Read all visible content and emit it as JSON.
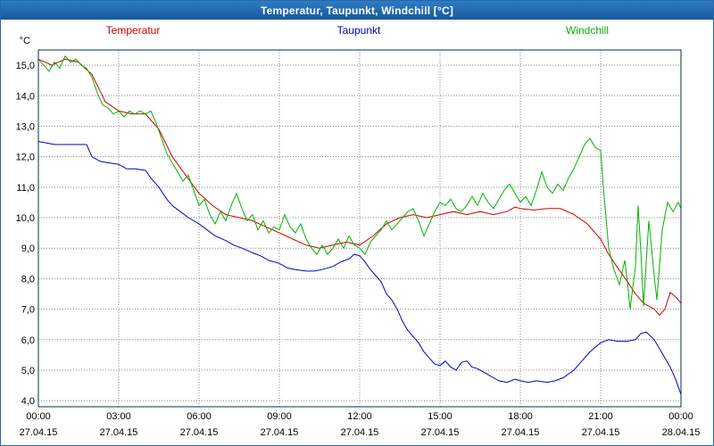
{
  "window": {
    "title": "Temperatur, Taupunkt, Windchill [°C]"
  },
  "colors": {
    "titlebar_top": "#2e7cc3",
    "titlebar_bottom": "#17589d",
    "grid": "#8a8a8a",
    "plot_border": "#062c56"
  },
  "chart_data": {
    "type": "line",
    "title": "Temperatur, Taupunkt, Windchill [°C]",
    "y_unit_label": "°C",
    "grid": true,
    "x_hours_range": [
      0,
      24
    ],
    "y_range_plot": [
      3.8,
      15.5
    ],
    "y_tick_values": [
      15,
      14,
      13,
      12,
      11,
      10,
      9,
      8,
      7,
      6,
      5,
      4
    ],
    "y_tick_labels": [
      "15,0",
      "14,0",
      "13,0",
      "12,0",
      "11,0",
      "10,0",
      "9,0",
      "8,0",
      "7,0",
      "6,0",
      "5,0",
      "4,0"
    ],
    "x_tick_hours": [
      0,
      3,
      6,
      9,
      12,
      15,
      18,
      21,
      24
    ],
    "x_tick_times": [
      "00:00",
      "03:00",
      "06:00",
      "09:00",
      "12:00",
      "15:00",
      "18:00",
      "21:00",
      "00:00"
    ],
    "x_tick_dates": [
      "27.04.15",
      "27.04.15",
      "27.04.15",
      "27.04.15",
      "27.04.15",
      "27.04.15",
      "27.04.15",
      "27.04.15",
      "28.04.15"
    ],
    "legend": [
      {
        "label": "Temperatur",
        "color": "#d00000"
      },
      {
        "label": "Taupunkt",
        "color": "#0000c0"
      },
      {
        "label": "Windchill",
        "color": "#00b400"
      }
    ],
    "series": [
      {
        "name": "Temperatur",
        "color": "#d00000",
        "x": [
          0,
          0.5,
          1.0,
          1.5,
          2.0,
          2.5,
          3.0,
          3.5,
          4.0,
          4.5,
          5.0,
          5.5,
          6.0,
          6.5,
          7.0,
          7.5,
          8.0,
          8.5,
          9.0,
          9.5,
          10.0,
          10.5,
          11.0,
          11.5,
          12.0,
          12.5,
          13.0,
          13.5,
          14.0,
          14.5,
          15.0,
          15.5,
          16.0,
          16.5,
          17.0,
          17.5,
          17.8,
          18.0,
          18.5,
          19.0,
          19.5,
          20.0,
          20.5,
          21.0,
          21.3,
          21.6,
          22.0,
          22.3,
          22.6,
          23.0,
          23.2,
          23.4,
          23.6,
          23.8,
          24.0
        ],
        "y": [
          15.2,
          15.0,
          15.2,
          15.1,
          14.7,
          13.8,
          13.5,
          13.4,
          13.4,
          12.9,
          12.0,
          11.4,
          10.8,
          10.4,
          10.1,
          10.0,
          9.9,
          9.7,
          9.5,
          9.3,
          9.1,
          9.0,
          9.1,
          9.2,
          9.1,
          9.4,
          9.8,
          10.0,
          10.1,
          10.0,
          10.1,
          10.2,
          10.1,
          10.2,
          10.1,
          10.2,
          10.35,
          10.3,
          10.25,
          10.3,
          10.3,
          10.1,
          9.8,
          9.3,
          8.8,
          8.4,
          7.9,
          7.5,
          7.2,
          7.0,
          6.8,
          7.0,
          7.55,
          7.4,
          7.2
        ]
      },
      {
        "name": "Taupunkt",
        "color": "#0000c0",
        "x": [
          0,
          0.3,
          0.6,
          1.0,
          1.5,
          1.8,
          2.0,
          2.3,
          2.6,
          3.0,
          3.3,
          3.6,
          4.0,
          4.2,
          4.5,
          4.8,
          5.0,
          5.3,
          5.6,
          6.0,
          6.3,
          6.6,
          7.0,
          7.3,
          7.6,
          8.0,
          8.3,
          8.6,
          9.0,
          9.3,
          9.6,
          10.0,
          10.3,
          10.6,
          11.0,
          11.3,
          11.6,
          11.8,
          12.0,
          12.2,
          12.4,
          12.6,
          12.8,
          13.0,
          13.2,
          13.4,
          13.6,
          13.8,
          14.0,
          14.2,
          14.4,
          14.6,
          14.8,
          15.0,
          15.2,
          15.4,
          15.6,
          15.8,
          16.0,
          16.2,
          16.4,
          16.6,
          16.8,
          17.0,
          17.2,
          17.5,
          17.8,
          18.0,
          18.3,
          18.6,
          19.0,
          19.3,
          19.6,
          20.0,
          20.3,
          20.6,
          21.0,
          21.3,
          21.6,
          22.0,
          22.3,
          22.5,
          22.7,
          23.0,
          23.2,
          23.4,
          23.6,
          23.8,
          24.0
        ],
        "y": [
          12.5,
          12.45,
          12.4,
          12.4,
          12.4,
          12.4,
          12.0,
          11.85,
          11.8,
          11.75,
          11.6,
          11.6,
          11.55,
          11.3,
          11.0,
          10.6,
          10.4,
          10.2,
          10.0,
          9.8,
          9.6,
          9.4,
          9.25,
          9.1,
          9.0,
          8.85,
          8.75,
          8.6,
          8.5,
          8.35,
          8.3,
          8.25,
          8.25,
          8.3,
          8.4,
          8.55,
          8.65,
          8.8,
          8.75,
          8.55,
          8.3,
          8.1,
          7.9,
          7.5,
          7.3,
          7.0,
          6.6,
          6.3,
          6.1,
          5.9,
          5.6,
          5.4,
          5.2,
          5.15,
          5.3,
          5.1,
          5.0,
          5.25,
          5.3,
          5.1,
          5.05,
          4.95,
          4.85,
          4.75,
          4.65,
          4.6,
          4.7,
          4.65,
          4.6,
          4.65,
          4.6,
          4.65,
          4.75,
          5.0,
          5.3,
          5.6,
          5.9,
          6.0,
          5.95,
          5.95,
          6.0,
          6.2,
          6.25,
          6.0,
          5.7,
          5.4,
          5.1,
          4.7,
          4.2
        ]
      },
      {
        "name": "Windchill",
        "color": "#00b400",
        "x": [
          0,
          0.2,
          0.4,
          0.6,
          0.8,
          1.0,
          1.2,
          1.4,
          1.6,
          1.8,
          2.0,
          2.2,
          2.4,
          2.6,
          2.8,
          3.0,
          3.2,
          3.4,
          3.6,
          3.8,
          4.0,
          4.2,
          4.4,
          4.6,
          4.8,
          5.0,
          5.2,
          5.4,
          5.6,
          5.8,
          6.0,
          6.2,
          6.4,
          6.6,
          6.8,
          7.0,
          7.2,
          7.4,
          7.6,
          7.8,
          8.0,
          8.2,
          8.4,
          8.6,
          8.8,
          9.0,
          9.2,
          9.4,
          9.6,
          9.8,
          10.0,
          10.2,
          10.4,
          10.6,
          10.8,
          11.0,
          11.2,
          11.4,
          11.6,
          11.8,
          12.0,
          12.2,
          12.4,
          12.6,
          12.8,
          13.0,
          13.2,
          13.4,
          13.6,
          13.8,
          14.0,
          14.2,
          14.4,
          14.6,
          14.8,
          15.0,
          15.2,
          15.4,
          15.6,
          15.8,
          16.0,
          16.2,
          16.4,
          16.6,
          16.8,
          17.0,
          17.2,
          17.4,
          17.6,
          17.8,
          18.0,
          18.2,
          18.4,
          18.6,
          18.8,
          19.0,
          19.2,
          19.4,
          19.6,
          19.8,
          20.0,
          20.2,
          20.4,
          20.6,
          20.8,
          21.0,
          21.1,
          21.3,
          21.5,
          21.7,
          21.9,
          22.0,
          22.1,
          22.3,
          22.4,
          22.5,
          22.6,
          22.8,
          23.0,
          23.1,
          23.3,
          23.5,
          23.7,
          23.9,
          24.0
        ],
        "y": [
          15.2,
          15.0,
          14.8,
          15.1,
          14.9,
          15.3,
          15.1,
          15.2,
          15.0,
          14.9,
          14.6,
          14.1,
          13.7,
          13.6,
          13.4,
          13.5,
          13.3,
          13.5,
          13.4,
          13.5,
          13.4,
          13.5,
          13.1,
          12.6,
          12.1,
          11.8,
          11.5,
          11.2,
          11.4,
          10.9,
          10.4,
          10.6,
          10.1,
          9.8,
          10.2,
          9.9,
          10.4,
          10.8,
          10.3,
          9.9,
          10.1,
          9.6,
          9.9,
          9.5,
          9.7,
          9.6,
          10.1,
          9.7,
          9.5,
          9.8,
          9.3,
          9.0,
          8.8,
          9.1,
          8.8,
          9.0,
          9.3,
          9.0,
          9.4,
          9.1,
          9.0,
          8.8,
          9.2,
          9.4,
          9.6,
          9.9,
          9.6,
          9.8,
          10.0,
          10.2,
          10.3,
          9.9,
          9.4,
          9.8,
          10.2,
          10.5,
          10.4,
          10.6,
          10.3,
          10.2,
          10.4,
          10.7,
          10.4,
          10.8,
          10.5,
          10.3,
          10.6,
          10.9,
          11.1,
          10.8,
          10.5,
          10.7,
          10.4,
          10.9,
          11.5,
          11.0,
          10.8,
          11.1,
          10.9,
          11.3,
          11.6,
          12.0,
          12.4,
          12.6,
          12.3,
          12.2,
          11.0,
          9.0,
          8.3,
          7.8,
          8.6,
          7.9,
          7.0,
          8.4,
          10.4,
          8.9,
          7.1,
          9.9,
          8.1,
          7.3,
          9.6,
          10.5,
          10.2,
          10.5,
          10.3
        ]
      }
    ]
  }
}
